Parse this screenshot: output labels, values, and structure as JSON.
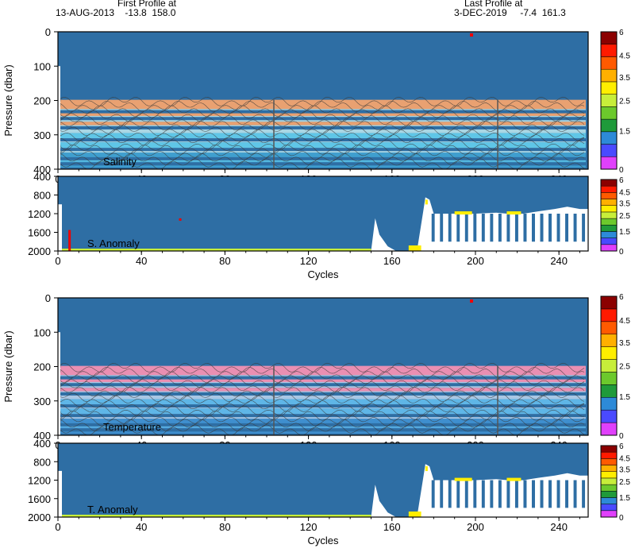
{
  "header": {
    "first_profile_label": "First Profile at",
    "first_profile_info": "13-AUG-2013    -13.8  158.0",
    "last_profile_label": "Last Profile at",
    "last_profile_info": "3-DEC-2019     -7.4  161.3"
  },
  "colors": {
    "fill": "#2e6ea4",
    "gap": "#ffffff",
    "contour": "#3a3a3a",
    "colorbar": [
      "#e040fb",
      "#4a4aff",
      "#2d8ad8",
      "#1f9a3a",
      "#6cc92c",
      "#c7ee3a",
      "#ffee00",
      "#ffb000",
      "#ff5a00",
      "#ff1a00",
      "#8b0000"
    ],
    "salinity_bands": [
      "#e9a171",
      "#a9d6e4",
      "#5fc6e7",
      "#3f9fcf"
    ],
    "temperature_bands": [
      "#ea8fb2",
      "#a9c7e4",
      "#5fb6e7",
      "#3f8fcf"
    ]
  },
  "chart_data": [
    {
      "type": "heatmap",
      "id": "salinity",
      "annotation": "Salinity",
      "ylabel": "Pressure (dbar)",
      "xlim": [
        0,
        254
      ],
      "ylim": [
        400,
        0
      ],
      "xticks": [
        0,
        40,
        80,
        120,
        160,
        200,
        240
      ],
      "yticks": [
        0,
        100,
        200,
        300,
        400
      ],
      "colorbar_ticks": [
        "6",
        "4.5",
        "3.5",
        "2.5",
        "1.5",
        "0"
      ],
      "band_top": 198
    },
    {
      "type": "heatmap",
      "id": "s-anomaly",
      "annotation": "S. Anomaly",
      "xlabel": "Cycles",
      "xlim": [
        0,
        254
      ],
      "ylim": [
        2000,
        400
      ],
      "xticks": [
        0,
        40,
        80,
        120,
        160,
        200,
        240
      ],
      "yticks": [
        400,
        800,
        1200,
        1600,
        2000
      ],
      "colorbar_ticks": [
        "6",
        "4.5",
        "3.5",
        "2.5",
        "1.5",
        "0"
      ],
      "profile_depth": [
        [
          0,
          2000
        ],
        [
          4,
          2000
        ],
        [
          150,
          2000
        ],
        [
          152,
          1300
        ],
        [
          154,
          1650
        ],
        [
          158,
          1900
        ],
        [
          162,
          2000
        ],
        [
          172,
          2000
        ],
        [
          175,
          1150
        ],
        [
          176,
          850
        ],
        [
          178,
          900
        ],
        [
          180,
          1200
        ],
        [
          190,
          1200
        ],
        [
          200,
          1200
        ],
        [
          210,
          1180
        ],
        [
          220,
          1220
        ],
        [
          230,
          1150
        ],
        [
          238,
          1100
        ],
        [
          244,
          1050
        ],
        [
          250,
          1100
        ],
        [
          254,
          1100
        ]
      ]
    },
    {
      "type": "heatmap",
      "id": "temperature",
      "annotation": "Temperature",
      "ylabel": "Pressure (dbar)",
      "xlim": [
        0,
        254
      ],
      "ylim": [
        400,
        0
      ],
      "xticks": [
        0,
        40,
        80,
        120,
        160,
        200,
        240
      ],
      "yticks": [
        0,
        100,
        200,
        300,
        400
      ],
      "colorbar_ticks": [
        "6",
        "4.5",
        "3.5",
        "2.5",
        "1.5",
        "0"
      ],
      "band_top": 198
    },
    {
      "type": "heatmap",
      "id": "t-anomaly",
      "annotation": "T. Anomaly",
      "xlabel": "Cycles",
      "xlim": [
        0,
        254
      ],
      "ylim": [
        2000,
        400
      ],
      "xticks": [
        0,
        40,
        80,
        120,
        160,
        200,
        240
      ],
      "yticks": [
        400,
        800,
        1200,
        1600,
        2000
      ],
      "colorbar_ticks": [
        "6",
        "4.5",
        "3.5",
        "2.5",
        "1.5",
        "0"
      ],
      "profile_depth": [
        [
          0,
          2000
        ],
        [
          4,
          2000
        ],
        [
          150,
          2000
        ],
        [
          152,
          1300
        ],
        [
          154,
          1650
        ],
        [
          158,
          1900
        ],
        [
          162,
          2000
        ],
        [
          172,
          2000
        ],
        [
          175,
          1150
        ],
        [
          176,
          850
        ],
        [
          178,
          900
        ],
        [
          180,
          1200
        ],
        [
          190,
          1200
        ],
        [
          200,
          1200
        ],
        [
          210,
          1180
        ],
        [
          220,
          1220
        ],
        [
          230,
          1150
        ],
        [
          238,
          1100
        ],
        [
          244,
          1050
        ],
        [
          250,
          1100
        ],
        [
          254,
          1100
        ]
      ]
    }
  ]
}
